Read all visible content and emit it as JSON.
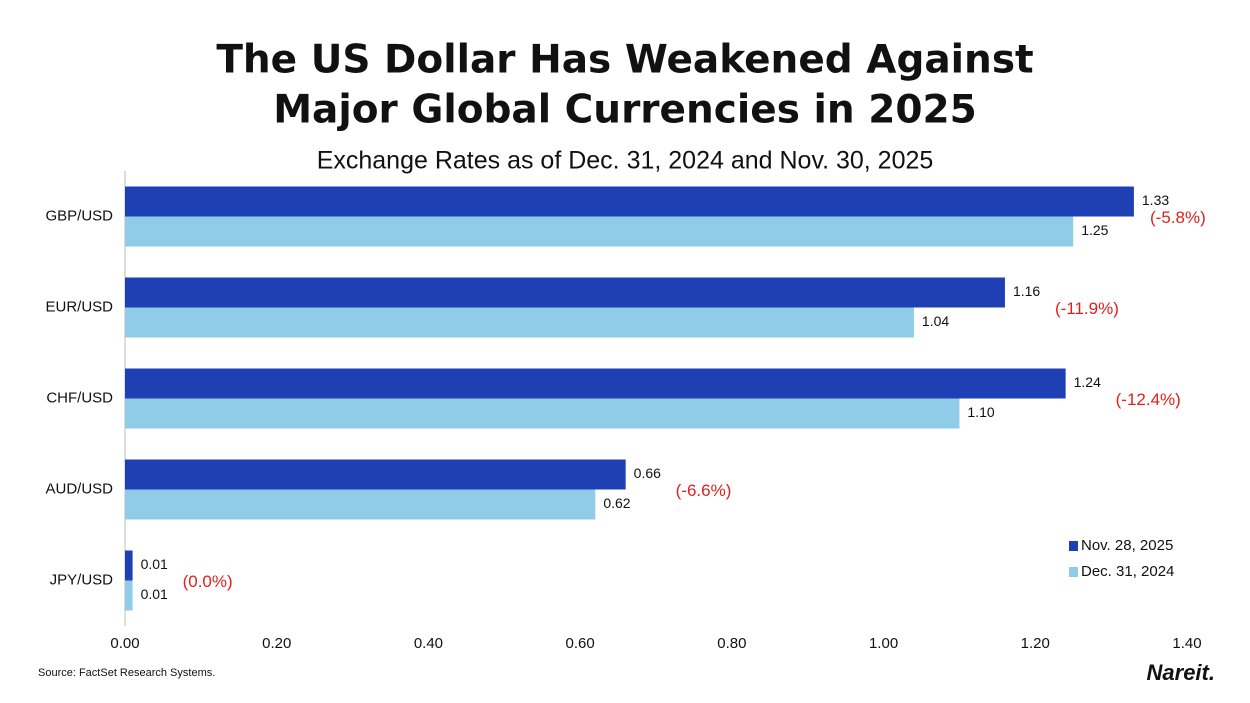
{
  "chart_data": {
    "type": "hbar",
    "title": [
      "The US Dollar Has Weakened Against",
      "Major Global Currencies in 2025"
    ],
    "subtitle": "Exchange Rates as of Dec. 31, 2024 and Nov. 30, 2025",
    "categories": [
      "GBP/USD",
      "EUR/USD",
      "CHF/USD",
      "AUD/USD",
      "JPY/USD"
    ],
    "series": [
      {
        "name": "Nov. 28, 2025",
        "color": "#1f3fb4",
        "values": [
          1.33,
          1.16,
          1.24,
          0.66,
          0.01
        ],
        "value_labels": [
          "1.33",
          "1.16",
          "1.24",
          "0.66",
          "0.01"
        ]
      },
      {
        "name": "Dec. 31, 2024",
        "color": "#90cbe8",
        "values": [
          1.25,
          1.04,
          1.1,
          0.62,
          0.01
        ],
        "value_labels": [
          "1.25",
          "1.04",
          "1.10",
          "0.62",
          "0.01"
        ]
      }
    ],
    "annotations": [
      "(-5.8%)",
      "(-11.9%)",
      "(-12.4%)",
      "(-6.6%)",
      "(0.0%)"
    ],
    "annotation_color": "#e0201c",
    "xlim": [
      0,
      1.4
    ],
    "xticks": [
      {
        "value": 0,
        "label": "0.00"
      },
      {
        "value": 0.2,
        "label": "0.20"
      },
      {
        "value": 0.4,
        "label": "0.40"
      },
      {
        "value": 0.6,
        "label": "0.60"
      },
      {
        "value": 0.8,
        "label": "0.80"
      },
      {
        "value": 1.0,
        "label": "1.00"
      },
      {
        "value": 1.2,
        "label": "1.20"
      },
      {
        "value": 1.4,
        "label": "1.40"
      }
    ],
    "grid": false,
    "legend": "bottom-right",
    "source": "Source: FactSet Research Systems.",
    "logo": "Nareit."
  }
}
